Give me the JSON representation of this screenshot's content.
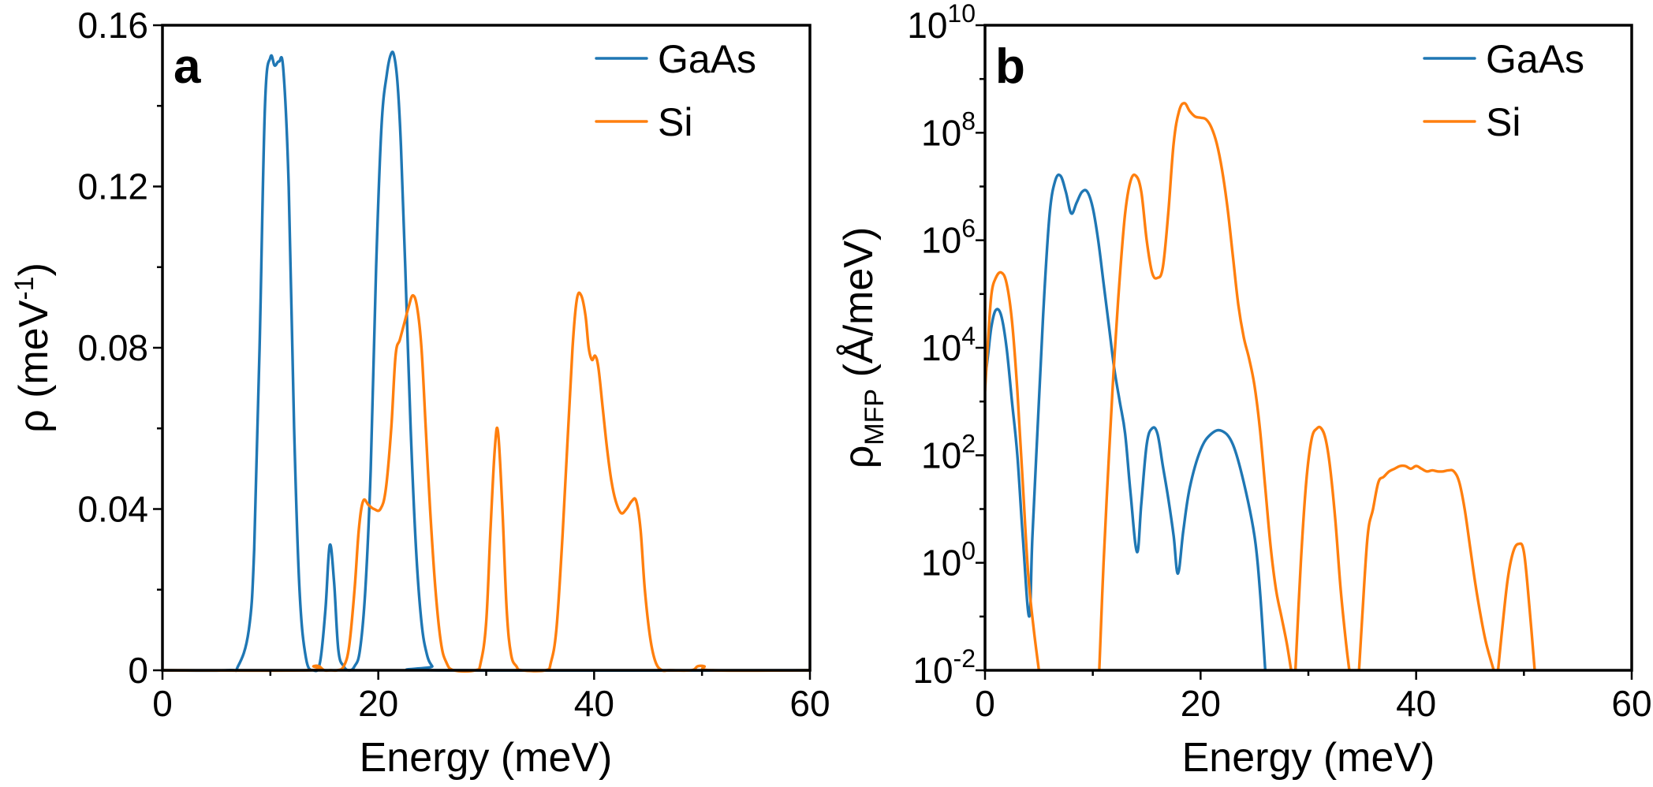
{
  "colors": {
    "gaas": "#1f77b4",
    "si": "#ff7f0e"
  },
  "chart_data": [
    {
      "type": "line",
      "panel_label": "a",
      "title": "",
      "xlabel": "Energy (meV)",
      "ylabel": {
        "main": "ρ (meV",
        "sup": "-1",
        "tail": ")"
      },
      "xlim": [
        0,
        60
      ],
      "ylim": [
        0,
        0.16
      ],
      "xticks": [
        0,
        20,
        40,
        60
      ],
      "xtick_labels": [
        "0",
        "20",
        "40",
        "60"
      ],
      "yticks": [
        0,
        0.04,
        0.08,
        0.12,
        0.16
      ],
      "ytick_labels": [
        "0",
        "0.04",
        "0.08",
        "0.12",
        "0.16"
      ],
      "legend": {
        "location": "top-right",
        "entries": [
          "GaAs",
          "Si"
        ]
      },
      "series": [
        {
          "name": "GaAs",
          "x": [
            6,
            7,
            8,
            8.5,
            9,
            9.5,
            10,
            10.4,
            10.8,
            11.2,
            11.7,
            12.2,
            12.7,
            13.3,
            14,
            14.6,
            15.1,
            15.5,
            15.9,
            16.3,
            16.8,
            17.3,
            17.8,
            18.3,
            18.8,
            19.3,
            19.8,
            20.3,
            20.8,
            21.2,
            21.5,
            21.8,
            22.1,
            22.5,
            23,
            23.5,
            24,
            24.5,
            25,
            25.5,
            60
          ],
          "y": [
            0,
            0.001,
            0.01,
            0.03,
            0.08,
            0.14,
            0.152,
            0.15,
            0.151,
            0.149,
            0.12,
            0.06,
            0.02,
            0.003,
            0,
            0.002,
            0.015,
            0.031,
            0.022,
            0.005,
            0.001,
            0,
            0.001,
            0.005,
            0.02,
            0.05,
            0.1,
            0.135,
            0.148,
            0.153,
            0.152,
            0.145,
            0.13,
            0.1,
            0.06,
            0.03,
            0.012,
            0.004,
            0.001,
            0,
            0
          ]
        },
        {
          "name": "Si",
          "x": [
            13.5,
            14,
            14.5,
            15,
            15.6,
            16.2,
            16.8,
            17.3,
            17.8,
            18.2,
            18.6,
            19.1,
            19.6,
            20.2,
            20.7,
            21.2,
            21.6,
            22,
            22.4,
            22.8,
            23.2,
            23.6,
            24,
            24.4,
            24.8,
            25.3,
            25.8,
            26.3,
            27,
            29,
            29.5,
            30,
            30.4,
            30.8,
            31.1,
            31.5,
            31.9,
            32.3,
            32.8,
            33.3,
            35.5,
            36,
            36.5,
            37,
            37.5,
            38,
            38.4,
            38.8,
            39.2,
            39.5,
            39.8,
            40.1,
            40.4,
            40.8,
            41.2,
            41.6,
            42,
            42.5,
            43,
            43.5,
            43.9,
            44.3,
            44.7,
            45.2,
            45.7,
            46.3,
            47,
            49,
            49.6,
            50.2,
            51,
            60
          ],
          "y": [
            0,
            0.001,
            0.001,
            0,
            0,
            0,
            0.001,
            0.006,
            0.02,
            0.035,
            0.042,
            0.041,
            0.04,
            0.04,
            0.045,
            0.06,
            0.078,
            0.082,
            0.086,
            0.09,
            0.093,
            0.09,
            0.08,
            0.06,
            0.04,
            0.02,
            0.007,
            0.002,
            0,
            0,
            0.002,
            0.012,
            0.035,
            0.055,
            0.059,
            0.04,
            0.015,
            0.004,
            0.001,
            0,
            0,
            0.002,
            0.01,
            0.03,
            0.055,
            0.08,
            0.092,
            0.093,
            0.088,
            0.08,
            0.077,
            0.078,
            0.075,
            0.065,
            0.055,
            0.047,
            0.042,
            0.039,
            0.04,
            0.042,
            0.042,
            0.035,
            0.02,
            0.008,
            0.002,
            0,
            0,
            0,
            0.001,
            0.001,
            0,
            0
          ]
        }
      ]
    },
    {
      "type": "line",
      "panel_label": "b",
      "title": "",
      "xlabel": "Energy (meV)",
      "ylabel": {
        "main": "ρ",
        "sub": "MFP",
        "tail": " (Å/meV)"
      },
      "xlim": [
        0,
        60
      ],
      "yscale": "log",
      "ylim_exp": [
        -2,
        10
      ],
      "xticks": [
        0,
        20,
        40,
        60
      ],
      "xtick_labels": [
        "0",
        "20",
        "40",
        "60"
      ],
      "yticks_exp": [
        -2,
        0,
        2,
        4,
        6,
        8,
        10
      ],
      "ytick_labels": [
        {
          "base": "10",
          "exp": "-2"
        },
        {
          "base": "10",
          "exp": "0"
        },
        {
          "base": "10",
          "exp": "2"
        },
        {
          "base": "10",
          "exp": "4"
        },
        {
          "base": "10",
          "exp": "6"
        },
        {
          "base": "10",
          "exp": "8"
        },
        {
          "base": "10",
          "exp": "10"
        }
      ],
      "legend": {
        "location": "top-right",
        "entries": [
          "GaAs",
          "Si"
        ]
      },
      "series": [
        {
          "name": "GaAs",
          "segments": [
            {
              "x": [
                0,
                0.3,
                0.6,
                1,
                1.5,
                2,
                2.5,
                3,
                3.5,
                4.1,
                4.4,
                5,
                5.5,
                6,
                6.5,
                7,
                7.5,
                8,
                8.5,
                9,
                9.5,
                10,
                10.5,
                11,
                11.5,
                12,
                12.5,
                13,
                13.5,
                14.1,
                14.5,
                15,
                15.5,
                16,
                16.5,
                17,
                17.5,
                17.9,
                18.4,
                19,
                20,
                21,
                22,
                23,
                24,
                25,
                25.5,
                26
              ],
              "log10_y": [
                3.4,
                3.9,
                4.4,
                4.7,
                4.6,
                4,
                3,
                2,
                0.5,
                -1,
                0.5,
                3,
                5,
                6.5,
                7.1,
                7.2,
                6.9,
                6.5,
                6.7,
                6.9,
                6.9,
                6.6,
                6,
                5.2,
                4.4,
                3.6,
                3,
                2.4,
                1.3,
                0.2,
                1.1,
                2.2,
                2.5,
                2.4,
                1.8,
                1.2,
                0.5,
                -0.2,
                0.6,
                1.4,
                2.1,
                2.4,
                2.45,
                2.2,
                1.5,
                0.5,
                -0.5,
                -2
              ]
            }
          ]
        },
        {
          "name": "Si",
          "segments": [
            {
              "x": [
                0,
                0.3,
                0.6,
                1,
                1.5,
                2,
                2.5,
                3,
                3.5,
                4,
                4.5,
                5
              ],
              "log10_y": [
                3.2,
                4.2,
                5,
                5.3,
                5.4,
                5.2,
                4.5,
                3.2,
                1.5,
                -0.2,
                -1.2,
                -2
              ]
            },
            {
              "x": [
                10.6,
                11,
                11.5,
                12,
                12.5,
                13,
                13.5,
                14,
                14.5,
                15,
                15.5,
                16,
                16.5,
                17,
                17.5,
                18,
                18.5,
                19,
                19.5,
                20,
                20.5,
                21,
                21.5,
                22,
                22.5,
                23,
                23.5,
                24,
                24.5,
                25,
                25.5,
                26,
                26.5,
                27,
                27.5,
                28,
                28.4
              ],
              "log10_y": [
                -2,
                0,
                2,
                3.8,
                5.3,
                6.5,
                7.1,
                7.2,
                6.9,
                6,
                5.4,
                5.3,
                5.5,
                6.5,
                7.8,
                8.4,
                8.55,
                8.4,
                8.3,
                8.28,
                8.25,
                8.1,
                7.8,
                7.3,
                6.6,
                5.7,
                4.8,
                4.2,
                3.8,
                3.3,
                2.5,
                1.4,
                0.3,
                -0.5,
                -1,
                -1.5,
                -2
              ]
            },
            {
              "x": [
                28.8,
                29.3,
                29.8,
                30.3,
                30.8,
                31.2,
                31.6,
                32,
                32.5,
                33,
                33.5,
                33.8
              ],
              "log10_y": [
                -2,
                0,
                1.5,
                2.3,
                2.5,
                2.5,
                2.3,
                1.8,
                0.8,
                -0.5,
                -1.5,
                -2
              ]
            },
            {
              "x": [
                34.7,
                35,
                35.5,
                36,
                36.5,
                37,
                37.5,
                38,
                38.5,
                39,
                39.5,
                40,
                40.5,
                41,
                41.5,
                42,
                42.5,
                43,
                43.5,
                44,
                44.5,
                45,
                45.5,
                46,
                46.5,
                47.2
              ],
              "log10_y": [
                -2,
                -1,
                0.5,
                1,
                1.5,
                1.6,
                1.7,
                1.75,
                1.8,
                1.8,
                1.75,
                1.8,
                1.75,
                1.7,
                1.72,
                1.7,
                1.7,
                1.72,
                1.7,
                1.5,
                1,
                0.3,
                -0.4,
                -1,
                -1.5,
                -2
              ]
            },
            {
              "x": [
                47.6,
                48,
                48.5,
                49,
                49.5,
                50,
                50.5,
                51
              ],
              "log10_y": [
                -2,
                -1.2,
                -0.3,
                0.2,
                0.35,
                0.2,
                -0.8,
                -2
              ]
            }
          ]
        }
      ]
    }
  ]
}
